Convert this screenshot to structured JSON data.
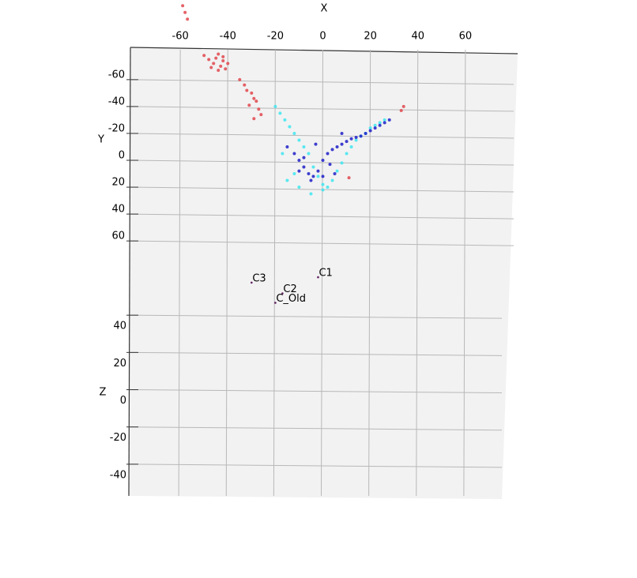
{
  "chart_data": {
    "type": "scatter3d",
    "x_label": "X",
    "y_label": "Y",
    "z_label": "Z",
    "xlim": [
      -81,
      82
    ],
    "ylim": [
      -84,
      84
    ],
    "zlim": [
      -57,
      46
    ],
    "xticks": [
      -60,
      -40,
      -20,
      0,
      20,
      40,
      60
    ],
    "yticks": [
      -60,
      -40,
      -20,
      0,
      20,
      40,
      60
    ],
    "zticks": [
      40,
      20,
      0,
      -20,
      -40
    ],
    "grid": true,
    "series": [
      {
        "color": "#e0474c",
        "x": [
          -59,
          -58,
          -57,
          -50,
          -48,
          -46,
          -45,
          -44,
          -43,
          -42,
          -41,
          -40,
          -47,
          -44,
          -42,
          -35,
          -33,
          -32,
          -30,
          -29,
          -28,
          -31,
          -27,
          -26,
          -29,
          34,
          33,
          11
        ],
        "y": [
          -115,
          -110,
          -105,
          -78,
          -75,
          -72,
          -76,
          -79,
          -70,
          -74,
          -68,
          -72,
          -69,
          -67,
          -77,
          -60,
          -56,
          -52,
          -50,
          -46,
          -44,
          -41,
          -38,
          -34,
          -31,
          -40,
          -37,
          13
        ]
      },
      {
        "color": "#3ee6f0",
        "x": [
          -20,
          -18,
          -16,
          -14,
          -12,
          -10,
          -8,
          -6,
          -4,
          -2,
          0,
          2,
          4,
          6,
          8,
          10,
          12,
          14,
          16,
          18,
          20,
          22,
          24,
          26,
          -15,
          -10,
          -5,
          0,
          -12,
          -17
        ],
        "y": [
          -40,
          -35,
          -30,
          -25,
          -20,
          -15,
          -10,
          -5,
          5,
          12,
          18,
          20,
          15,
          8,
          2,
          -5,
          -10,
          -15,
          -18,
          -20,
          -24,
          -26,
          -28,
          -30,
          15,
          20,
          25,
          22,
          10,
          -5
        ]
      },
      {
        "color": "#1e1ec8",
        "x": [
          -15,
          -12,
          -10,
          -8,
          -6,
          -4,
          -2,
          0,
          2,
          4,
          6,
          8,
          10,
          12,
          14,
          16,
          18,
          20,
          22,
          24,
          26,
          28,
          -5,
          0,
          5,
          -8,
          3,
          -3,
          8,
          -10
        ],
        "y": [
          -10,
          -5,
          0,
          5,
          10,
          12,
          8,
          0,
          -5,
          -8,
          -10,
          -12,
          -14,
          -16,
          -17,
          -18,
          -20,
          -22,
          -24,
          -26,
          -28,
          -30,
          15,
          12,
          10,
          -2,
          3,
          -12,
          -20,
          8
        ]
      }
    ],
    "annotations": [
      {
        "text": "C1",
        "x": -2,
        "y": 87
      },
      {
        "text": "C3",
        "x": -30,
        "y": 91
      },
      {
        "text": "C2",
        "x": -17,
        "y": 99
      },
      {
        "text": "C_Old",
        "x": -20,
        "y": 106
      }
    ]
  }
}
